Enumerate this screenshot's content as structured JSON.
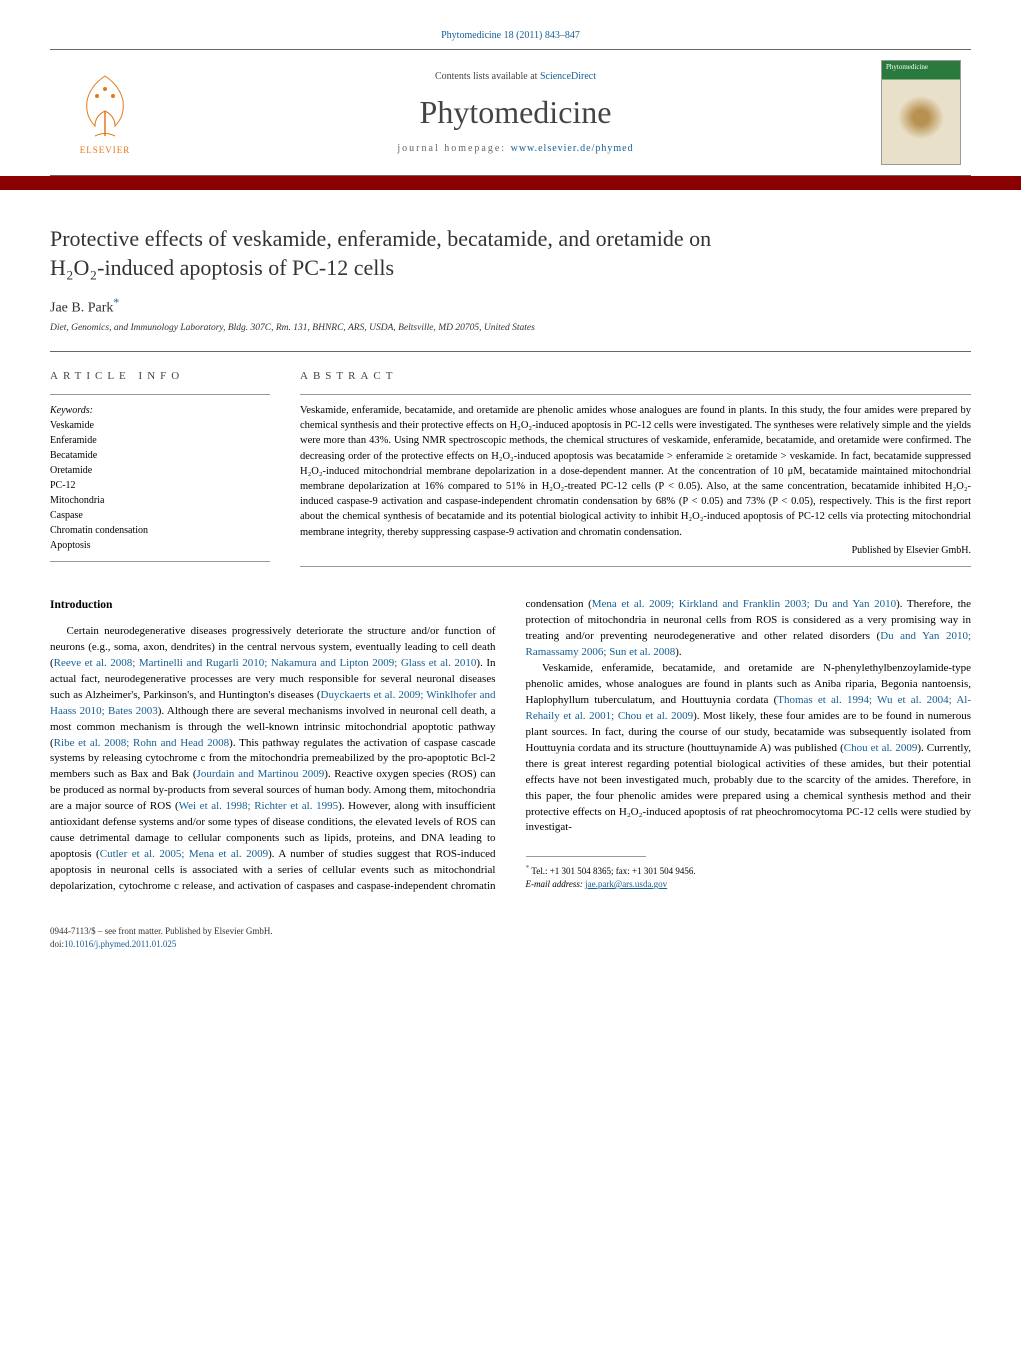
{
  "journal_ref": "Phytomedicine 18 (2011) 843–847",
  "contents_prefix": "Contents lists available at ",
  "contents_link": "ScienceDirect",
  "journal_name": "Phytomedicine",
  "homepage_prefix": "journal homepage: ",
  "homepage_url": "www.elsevier.de/phymed",
  "cover_label": "Phytomedicine",
  "elsevier_label": "ELSEVIER",
  "title_line1": "Protective effects of veskamide, enferamide, becatamide, and oretamide on",
  "title_line2": "H₂O₂-induced apoptosis of PC-12 cells",
  "author": "Jae B. Park",
  "affiliation": "Diet, Genomics, and Immunology Laboratory, Bldg. 307C, Rm. 131, BHNRC, ARS, USDA, Beltsville, MD 20705, United States",
  "info_label": "article info",
  "abstract_label": "abstract",
  "keywords_label": "Keywords:",
  "keywords": [
    "Veskamide",
    "Enferamide",
    "Becatamide",
    "Oretamide",
    "PC-12",
    "Mitochondria",
    "Caspase",
    "Chromatin condensation",
    "Apoptosis"
  ],
  "abstract_text": "Veskamide, enferamide, becatamide, and oretamide are phenolic amides whose analogues are found in plants. In this study, the four amides were prepared by chemical synthesis and their protective effects on H₂O₂-induced apoptosis in PC-12 cells were investigated. The syntheses were relatively simple and the yields were more than 43%. Using NMR spectroscopic methods, the chemical structures of veskamide, enferamide, becatamide, and oretamide were confirmed. The decreasing order of the protective effects on H₂O₂-induced apoptosis was becatamide > enferamide ≥ oretamide > veskamide. In fact, becatamide suppressed H₂O₂-induced mitochondrial membrane depolarization in a dose-dependent manner. At the concentration of 10 μM, becatamide maintained mitochondrial membrane depolarization at 16% compared to 51% in H₂O₂-treated PC-12 cells (P < 0.05). Also, at the same concentration, becatamide inhibited H₂O₂-induced caspase-9 activation and caspase-independent chromatin condensation by 68% (P < 0.05) and 73% (P < 0.05), respectively. This is the first report about the chemical synthesis of becatamide and its potential biological activity to inhibit H₂O₂-induced apoptosis of PC-12 cells via protecting mitochondrial membrane integrity, thereby suppressing caspase-9 activation and chromatin condensation.",
  "published_by": "Published by Elsevier GmbH.",
  "intro_heading": "Introduction",
  "para1a": "Certain neurodegenerative diseases progressively deteriorate the structure and/or function of neurons (e.g., soma, axon, dendrites) in the central nervous system, eventually leading to cell death (",
  "cite1": "Reeve et al. 2008; Martinelli and Rugarli 2010; Nakamura and Lipton 2009; Glass et al. 2010",
  "para1b": "). In actual fact, neurodegenerative processes are very much responsible for several neuronal diseases such as Alzheimer's, Parkinson's, and Huntington's diseases (",
  "cite2": "Duyckaerts et al. 2009; Winklhofer and Haass 2010; Bates 2003",
  "para1c": "). Although there are several mechanisms involved in neuronal cell death, a most common mechanism is through the well-known intrinsic mitochondrial apoptotic pathway (",
  "cite3": "Ribe et al. 2008; Rohn and Head 2008",
  "para1d": "). This pathway regulates the activation of caspase cascade systems by releasing cytochrome c from the mitochondria premeabilized by the pro-apoptotic Bcl-2 members such as Bax and Bak (",
  "cite4": "Jourdain and Martinou 2009",
  "para1e": "). Reactive oxygen species (ROS) can be produced as normal by-products from several sources of human body. Among them, mitochondria are a major source of ROS (",
  "cite5": "Wei et al. 1998; Richter et al. 1995",
  "para1f": "). However, along with insufficient antioxidant defense systems and/or some types of disease conditions, the elevated levels of ROS can cause detrimental damage to cellular components such as lipids, proteins, and DNA leading to apoptosis (",
  "cite6": "Cutler et al. 2005; Mena et al. 2009",
  "para1g": "). A number of studies suggest that ROS-induced apoptosis in neuronal cells is associated with a series of cellular events such as mitochondrial depolarization, cytochrome c release, and activation of caspases and caspase-independent chromatin condensation (",
  "cite7": "Mena et al. 2009; Kirkland and Franklin 2003; Du and Yan 2010",
  "para1h": "). Therefore, the protection of mitochondria in neuronal cells from ROS is considered as a very promising way in treating and/or preventing neurodegenerative and other related disorders (",
  "cite8": "Du and Yan 2010; Ramassamy 2006; Sun et al. 2008",
  "para1i": ").",
  "para2a": "Veskamide, enferamide, becatamide, and oretamide are N-phenylethylbenzoylamide-type phenolic amides, whose analogues are found in plants such as Aniba riparia, Begonia nantoensis, Haplophyllum tuberculatum, and Houttuynia cordata (",
  "cite9": "Thomas et al. 1994; Wu et al. 2004; Al-Rehaily et al. 2001; Chou et al. 2009",
  "para2b": "). Most likely, these four amides are to be found in numerous plant sources. In fact, during the course of our study, becatamide was subsequently isolated from Houttuynia cordata and its structure (houttuynamide A) was published (",
  "cite10": "Chou et al. 2009",
  "para2c": "). Currently, there is great interest regarding potential biological activities of these amides, but their potential effects have not been investigated much, probably due to the scarcity of the amides. Therefore, in this paper, the four phenolic amides were prepared using a chemical synthesis method and their protective effects on H₂O₂-induced apoptosis of rat pheochromocytoma PC-12 cells were studied by investigat-",
  "footnote_tel": "Tel.: +1 301 504 8365; fax: +1 301 504 9456.",
  "footnote_email_label": "E-mail address: ",
  "footnote_email": "jae.park@ars.usda.gov",
  "footer_line1": "0944-7113/$ – see front matter. Published by Elsevier GmbH.",
  "footer_doi_prefix": "doi:",
  "footer_doi": "10.1016/j.phymed.2011.01.025",
  "colors": {
    "link": "#165f93",
    "accent_red": "#8b0000",
    "elsevier_orange": "#e67817"
  }
}
